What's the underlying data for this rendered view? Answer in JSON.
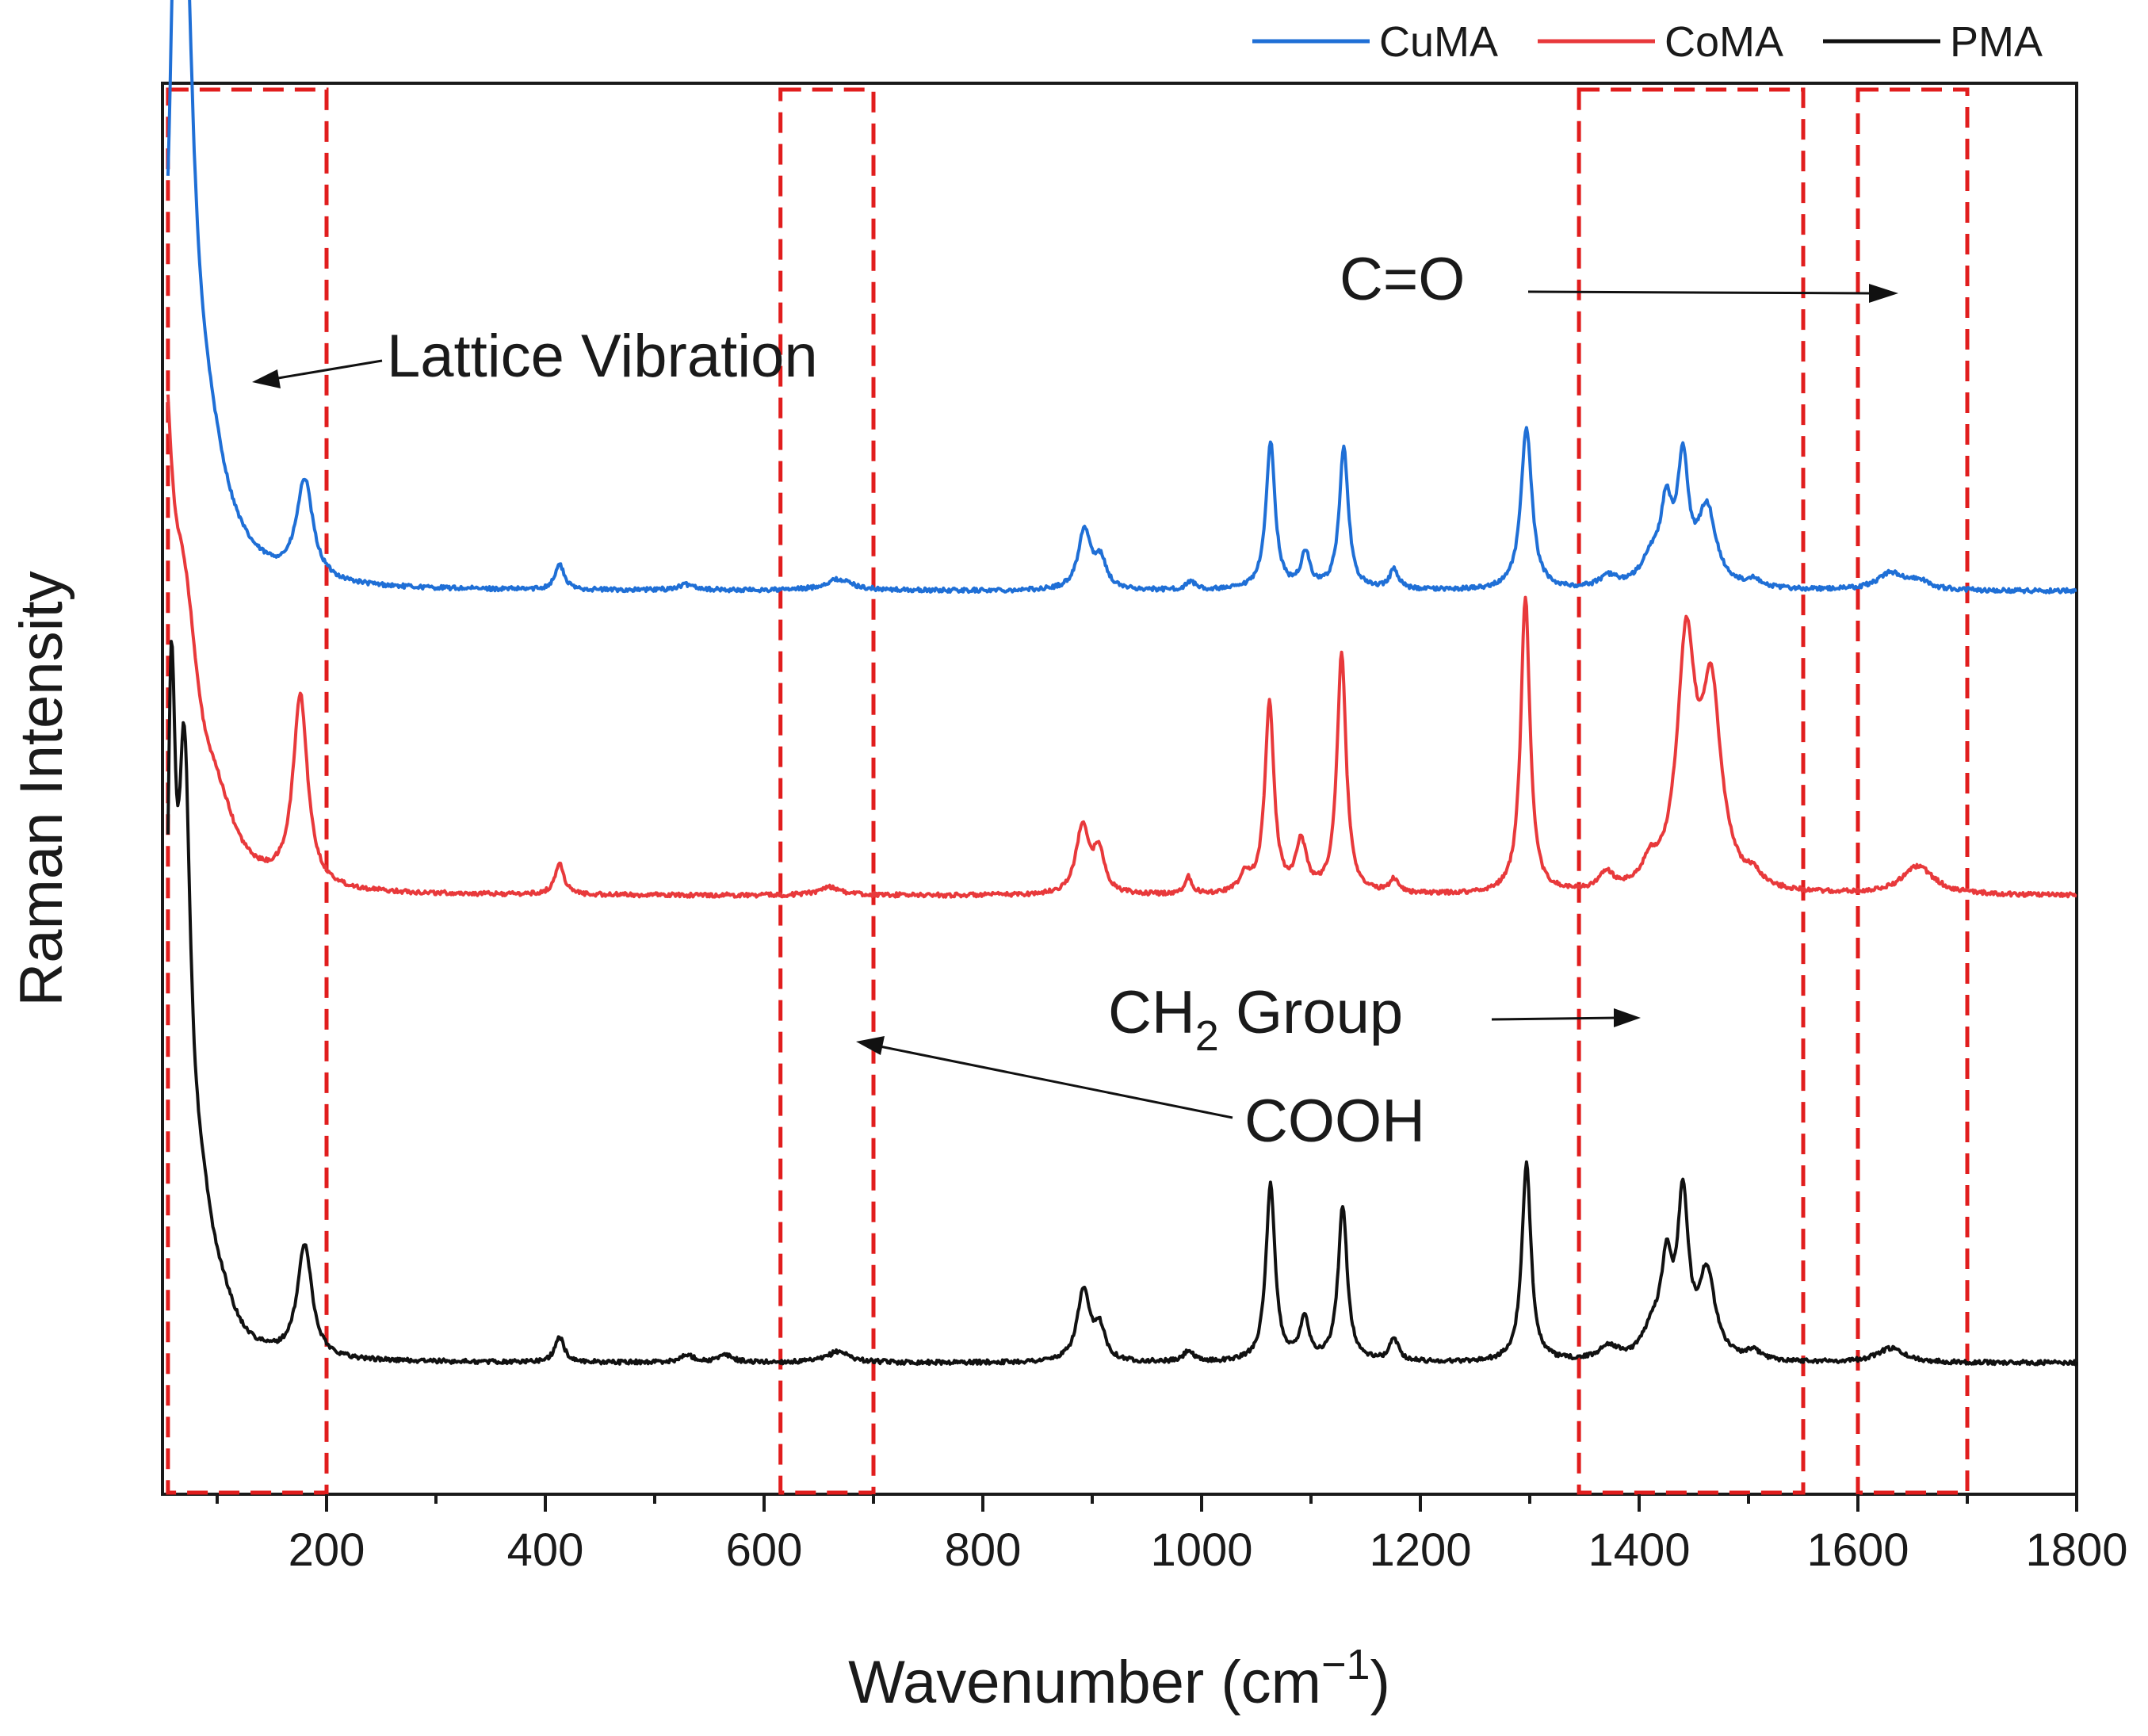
{
  "chart_data": {
    "type": "line",
    "title": "",
    "xlabel": "Wavenumber (cm⁻¹)",
    "xlabel_base": "Wavenumber (cm",
    "xlabel_sup": "−1",
    "xlabel_close": ")",
    "ylabel": "Raman Intensity",
    "xlim": [
      50,
      1800
    ],
    "ylim": [
      0,
      1
    ],
    "xticks": [
      200,
      400,
      600,
      800,
      1000,
      1200,
      1400,
      1600,
      1800
    ],
    "xtick_labels": [
      "200",
      "400",
      "600",
      "800",
      "1000",
      "1200",
      "1400",
      "1600",
      "1800"
    ],
    "yticks_shown": false,
    "legend_position": "top-right, outside plot",
    "series": [
      {
        "name": "CuMA",
        "color": "#1f6fd6",
        "baseline": 0.64,
        "x_range": [
          55,
          1800
        ],
        "peaks": [
          {
            "x": 62,
            "height": 0.28,
            "width": 8
          },
          {
            "x": 70,
            "height": 0.33,
            "width": 10
          },
          {
            "x": 88,
            "height": 0.09,
            "width": 25
          },
          {
            "x": 180,
            "height": 0.07,
            "width": 9
          },
          {
            "x": 413,
            "height": 0.018,
            "width": 5
          },
          {
            "x": 530,
            "height": 0.004,
            "width": 10
          },
          {
            "x": 668,
            "height": 0.008,
            "width": 15
          },
          {
            "x": 893,
            "height": 0.043,
            "width": 7
          },
          {
            "x": 908,
            "height": 0.02,
            "width": 6
          },
          {
            "x": 990,
            "height": 0.006,
            "width": 5
          },
          {
            "x": 1063,
            "height": 0.105,
            "width": 5
          },
          {
            "x": 1095,
            "height": 0.025,
            "width": 5
          },
          {
            "x": 1130,
            "height": 0.1,
            "width": 5
          },
          {
            "x": 1176,
            "height": 0.014,
            "width": 5
          },
          {
            "x": 1297,
            "height": 0.115,
            "width": 6
          },
          {
            "x": 1372,
            "height": 0.008,
            "width": 10
          },
          {
            "x": 1412,
            "height": 0.02,
            "width": 12
          },
          {
            "x": 1425,
            "height": 0.05,
            "width": 6
          },
          {
            "x": 1440,
            "height": 0.085,
            "width": 6
          },
          {
            "x": 1462,
            "height": 0.055,
            "width": 10
          },
          {
            "x": 1505,
            "height": 0.006,
            "width": 8
          },
          {
            "x": 1630,
            "height": 0.012,
            "width": 15
          },
          {
            "x": 1655,
            "height": 0.006,
            "width": 12
          }
        ]
      },
      {
        "name": "CoMA",
        "color": "#e8393b",
        "baseline": 0.424,
        "x_range": [
          55,
          1800
        ],
        "peaks": [
          {
            "x": 50,
            "height": 0.33,
            "width": 10
          },
          {
            "x": 70,
            "height": 0.16,
            "width": 16
          },
          {
            "x": 100,
            "height": 0.04,
            "width": 20
          },
          {
            "x": 176,
            "height": 0.135,
            "width": 8
          },
          {
            "x": 413,
            "height": 0.022,
            "width": 5
          },
          {
            "x": 660,
            "height": 0.006,
            "width": 12
          },
          {
            "x": 891,
            "height": 0.048,
            "width": 7
          },
          {
            "x": 906,
            "height": 0.03,
            "width": 6
          },
          {
            "x": 988,
            "height": 0.012,
            "width": 4
          },
          {
            "x": 1040,
            "height": 0.012,
            "width": 6
          },
          {
            "x": 1062,
            "height": 0.135,
            "width": 5
          },
          {
            "x": 1091,
            "height": 0.035,
            "width": 6
          },
          {
            "x": 1128,
            "height": 0.17,
            "width": 5
          },
          {
            "x": 1176,
            "height": 0.01,
            "width": 5
          },
          {
            "x": 1296,
            "height": 0.21,
            "width": 5
          },
          {
            "x": 1370,
            "height": 0.012,
            "width": 8
          },
          {
            "x": 1410,
            "height": 0.015,
            "width": 8
          },
          {
            "x": 1443,
            "height": 0.17,
            "width": 10
          },
          {
            "x": 1466,
            "height": 0.135,
            "width": 11
          },
          {
            "x": 1505,
            "height": 0.008,
            "width": 8
          },
          {
            "x": 1655,
            "height": 0.02,
            "width": 18
          }
        ]
      },
      {
        "name": "PMA",
        "color": "#111111",
        "baseline": 0.093,
        "x_range": [
          55,
          1800
        ],
        "peaks": [
          {
            "x": 58,
            "height": 0.4,
            "width": 5
          },
          {
            "x": 70,
            "height": 0.35,
            "width": 7
          },
          {
            "x": 85,
            "height": 0.08,
            "width": 15
          },
          {
            "x": 105,
            "height": 0.02,
            "width": 15
          },
          {
            "x": 180,
            "height": 0.08,
            "width": 8
          },
          {
            "x": 413,
            "height": 0.018,
            "width": 5
          },
          {
            "x": 530,
            "height": 0.005,
            "width": 8
          },
          {
            "x": 565,
            "height": 0.005,
            "width": 8
          },
          {
            "x": 668,
            "height": 0.008,
            "width": 12
          },
          {
            "x": 892,
            "height": 0.05,
            "width": 7
          },
          {
            "x": 907,
            "height": 0.022,
            "width": 6
          },
          {
            "x": 988,
            "height": 0.008,
            "width": 5
          },
          {
            "x": 1063,
            "height": 0.125,
            "width": 5
          },
          {
            "x": 1094,
            "height": 0.03,
            "width": 5
          },
          {
            "x": 1129,
            "height": 0.11,
            "width": 5
          },
          {
            "x": 1176,
            "height": 0.016,
            "width": 5
          },
          {
            "x": 1297,
            "height": 0.14,
            "width": 5
          },
          {
            "x": 1372,
            "height": 0.01,
            "width": 10
          },
          {
            "x": 1412,
            "height": 0.02,
            "width": 10
          },
          {
            "x": 1425,
            "height": 0.06,
            "width": 6
          },
          {
            "x": 1440,
            "height": 0.11,
            "width": 6
          },
          {
            "x": 1462,
            "height": 0.06,
            "width": 9
          },
          {
            "x": 1505,
            "height": 0.006,
            "width": 8
          },
          {
            "x": 1630,
            "height": 0.01,
            "width": 15
          }
        ]
      }
    ],
    "regions": [
      {
        "name": "lattice-vibration-region",
        "x0": 55,
        "x1": 200,
        "color": "#e11d1d"
      },
      {
        "name": "cooh-region",
        "x0": 615,
        "x1": 700,
        "color": "#e11d1d"
      },
      {
        "name": "ch2-region",
        "x0": 1345,
        "x1": 1550,
        "color": "#e11d1d"
      },
      {
        "name": "co-region",
        "x0": 1600,
        "x1": 1700,
        "color": "#e11d1d"
      }
    ],
    "annotations": [
      {
        "name": "lattice-vibration",
        "text": "Lattice Vibration"
      },
      {
        "name": "c-equals-o",
        "text": "C=O"
      },
      {
        "name": "ch2-group",
        "text_main": "CH",
        "text_sub": "2",
        "text_after": " Group"
      },
      {
        "name": "cooh",
        "text": "COOH"
      }
    ]
  }
}
